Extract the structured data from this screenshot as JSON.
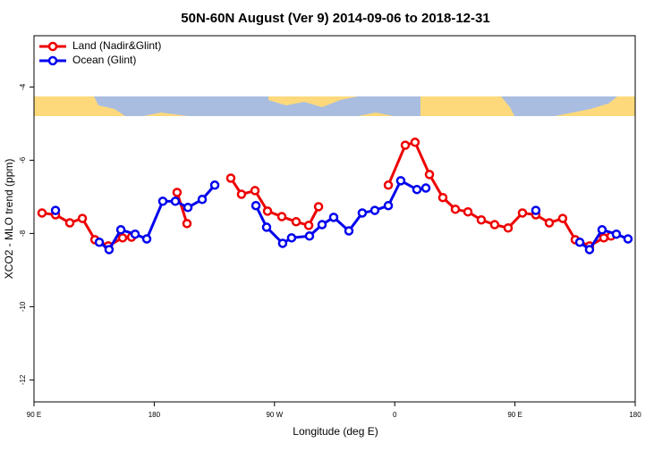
{
  "chart_data": {
    "type": "line",
    "title": "50N-60N August (Ver 9)   2014-09-06 to 2018-12-31",
    "x_label": "Longitude (deg E)",
    "y_label": "XCO2 - MLO trend (ppm)",
    "xlim": [
      90,
      540
    ],
    "ylim": [
      -12.6,
      -2.6
    ],
    "xticks": [
      {
        "value": 90,
        "label": "90 E"
      },
      180,
      {
        "value": 270,
        "label": "90 W"
      },
      {
        "value": 360,
        "label": "0"
      },
      {
        "value": 450,
        "label": "90 E"
      },
      {
        "value": 540,
        "label": "180"
      }
    ],
    "yticks": [
      -12,
      -10,
      -8,
      -6,
      -4
    ],
    "legend": "top-left",
    "series": [
      {
        "name": "Land (Nadir&Glint)",
        "color": "#ee0000",
        "x": [
          96.0,
          106.1,
          116.8,
          126.2,
          135.6,
          145.6,
          156.3,
          163.0,
          null,
          197.1,
          204.5,
          null,
          237.3,
          245.3,
          255.4,
          264.8,
          275.5,
          286.2,
          295.6,
          303.0,
          null,
          355.2,
          367.9,
          375.2,
          386.0,
          396.0,
          405.4,
          414.8,
          424.8,
          434.8,
          444.9,
          455.6,
          465.6,
          475.7,
          485.7,
          495.1,
          505.8,
          516.5,
          521.9
        ],
        "values": [
          -7.44,
          -7.49,
          -7.71,
          -7.59,
          -8.17,
          -8.34,
          -8.12,
          -8.1,
          null,
          -6.88,
          -7.73,
          null,
          -6.49,
          -6.93,
          -6.83,
          -7.39,
          -7.54,
          -7.68,
          -7.78,
          -7.27,
          null,
          -6.68,
          -5.59,
          -5.51,
          -6.39,
          -7.02,
          -7.34,
          -7.41,
          -7.63,
          -7.76,
          -7.85,
          -7.44,
          -7.49,
          -7.71,
          -7.59,
          -8.17,
          -8.34,
          -8.12,
          -8.07
        ]
      },
      {
        "name": "Ocean (Glint)",
        "color": "#0000ee",
        "x": [
          106.1,
          null,
          138.9,
          146.2,
          155.0,
          165.7,
          174.4,
          186.4,
          195.8,
          205.2,
          215.9,
          225.3,
          null,
          256.1,
          264.1,
          276.1,
          282.8,
          296.2,
          305.6,
          314.3,
          325.7,
          335.7,
          345.1,
          355.2,
          364.5,
          376.6,
          383.3,
          null,
          465.6,
          null,
          498.5,
          505.8,
          515.2,
          525.9,
          534.6
        ],
        "values": [
          -7.37,
          null,
          -8.24,
          -8.44,
          -7.9,
          -8.02,
          -8.15,
          -7.12,
          -7.12,
          -7.29,
          -7.07,
          -6.68,
          null,
          -7.24,
          -7.83,
          -8.27,
          -8.12,
          -8.07,
          -7.76,
          -7.56,
          -7.93,
          -7.44,
          -7.37,
          -7.24,
          -6.56,
          -6.8,
          -6.76,
          null,
          -7.37,
          null,
          -8.24,
          -8.44,
          -7.9,
          -8.02,
          -8.15
        ]
      }
    ]
  }
}
